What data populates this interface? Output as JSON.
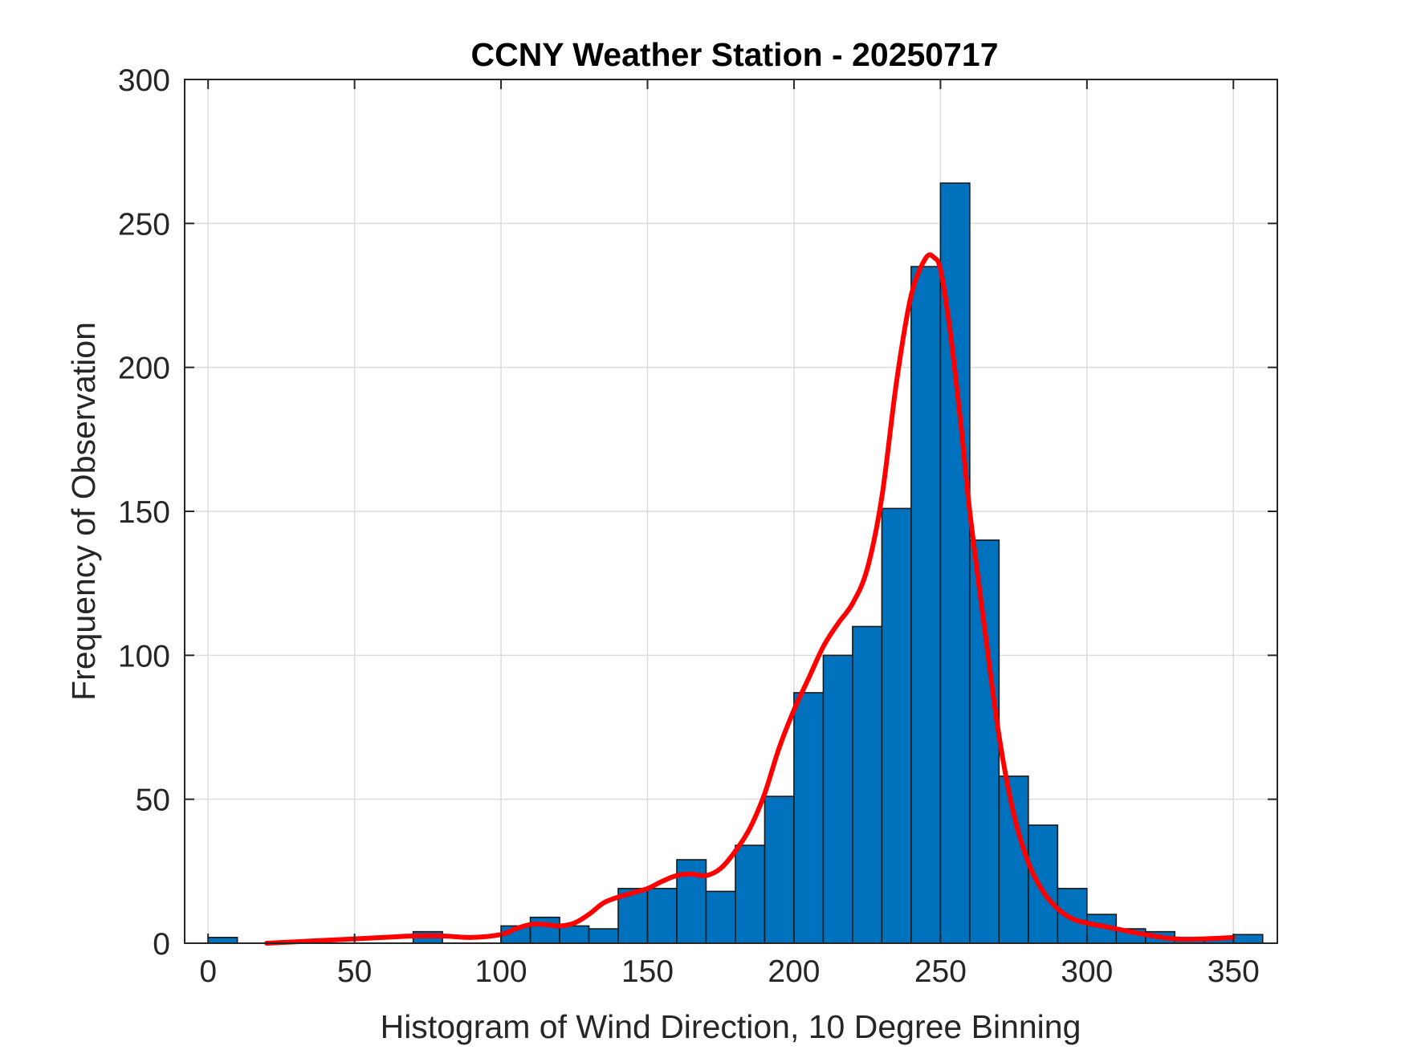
{
  "chart_data": {
    "type": "bar",
    "title": "CCNY Weather Station - 20250717",
    "xlabel": "Histogram of Wind Direction, 10 Degree Binning",
    "ylabel": "Frequency of Observation",
    "xlim": [
      -8,
      365
    ],
    "ylim": [
      0,
      300
    ],
    "xticks": [
      0,
      50,
      100,
      150,
      200,
      250,
      300,
      350
    ],
    "yticks": [
      0,
      50,
      100,
      150,
      200,
      250,
      300
    ],
    "grid": true,
    "bin_width": 10,
    "bins": [
      {
        "start": 0,
        "value": 2
      },
      {
        "start": 70,
        "value": 4
      },
      {
        "start": 100,
        "value": 6
      },
      {
        "start": 110,
        "value": 9
      },
      {
        "start": 120,
        "value": 6
      },
      {
        "start": 130,
        "value": 5
      },
      {
        "start": 140,
        "value": 19
      },
      {
        "start": 150,
        "value": 19
      },
      {
        "start": 160,
        "value": 29
      },
      {
        "start": 170,
        "value": 18
      },
      {
        "start": 180,
        "value": 34
      },
      {
        "start": 190,
        "value": 51
      },
      {
        "start": 200,
        "value": 87
      },
      {
        "start": 210,
        "value": 100
      },
      {
        "start": 220,
        "value": 110
      },
      {
        "start": 230,
        "value": 151
      },
      {
        "start": 240,
        "value": 235
      },
      {
        "start": 250,
        "value": 264
      },
      {
        "start": 260,
        "value": 140
      },
      {
        "start": 270,
        "value": 58
      },
      {
        "start": 280,
        "value": 41
      },
      {
        "start": 290,
        "value": 19
      },
      {
        "start": 300,
        "value": 10
      },
      {
        "start": 310,
        "value": 5
      },
      {
        "start": 320,
        "value": 4
      },
      {
        "start": 330,
        "value": 2
      },
      {
        "start": 340,
        "value": 2
      },
      {
        "start": 350,
        "value": 3
      }
    ],
    "bar_color": "#0072BD",
    "fit_line": {
      "color": "#FF0000",
      "x": [
        20,
        30,
        40,
        50,
        60,
        70,
        80,
        90,
        100,
        105,
        110,
        115,
        120,
        125,
        130,
        135,
        140,
        145,
        150,
        155,
        160,
        165,
        170,
        175,
        180,
        185,
        190,
        195,
        200,
        205,
        210,
        215,
        220,
        225,
        230,
        235,
        240,
        245,
        248,
        250,
        253,
        257,
        260,
        265,
        270,
        275,
        280,
        285,
        290,
        295,
        300,
        305,
        310,
        320,
        330,
        340,
        350
      ],
      "y": [
        0,
        0.5,
        1,
        1.5,
        2,
        2.5,
        2.5,
        2,
        3,
        5,
        6.5,
        6.5,
        6,
        7,
        10,
        14,
        16,
        17.5,
        19,
        21.5,
        23.5,
        24,
        23.5,
        26,
        32,
        40,
        52,
        68,
        81,
        92,
        103,
        111,
        118,
        130,
        155,
        195,
        225,
        238,
        238,
        234,
        215,
        180,
        150,
        110,
        72,
        45,
        28,
        18,
        12,
        8.5,
        7,
        6,
        5,
        3,
        1.5,
        1.5,
        2
      ]
    }
  }
}
